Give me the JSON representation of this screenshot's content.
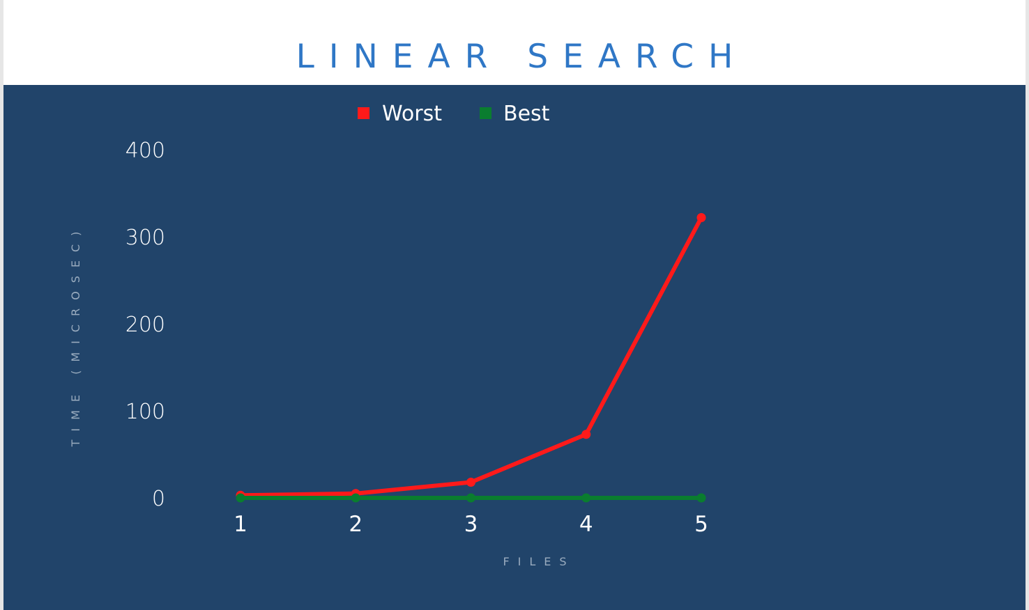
{
  "title": "LINEAR SEARCH",
  "colors": {
    "panel_bg": "#21446a",
    "title": "#2f77c6",
    "worst": "#ff1a1a",
    "best": "#0a7d2f"
  },
  "chart_data": {
    "type": "line",
    "title": "LINEAR SEARCH",
    "xlabel": "FILES",
    "ylabel": "TIME (MICROSEC)",
    "categories": [
      "1",
      "2",
      "3",
      "4",
      "5"
    ],
    "x": [
      1,
      2,
      3,
      4,
      5
    ],
    "ylim": [
      0,
      400
    ],
    "yticks": [
      "400",
      "300",
      "200",
      "100",
      "0"
    ],
    "ytick_values": [
      400,
      300,
      200,
      100,
      0
    ],
    "grid": false,
    "legend_position": "top-center",
    "series": [
      {
        "name": "Worst",
        "color": "#ff1a1a",
        "values": [
          3,
          5,
          18,
          73,
          322
        ]
      },
      {
        "name": "Best",
        "color": "#0a7d2f",
        "values": [
          0,
          0,
          0,
          0,
          0
        ]
      }
    ]
  }
}
